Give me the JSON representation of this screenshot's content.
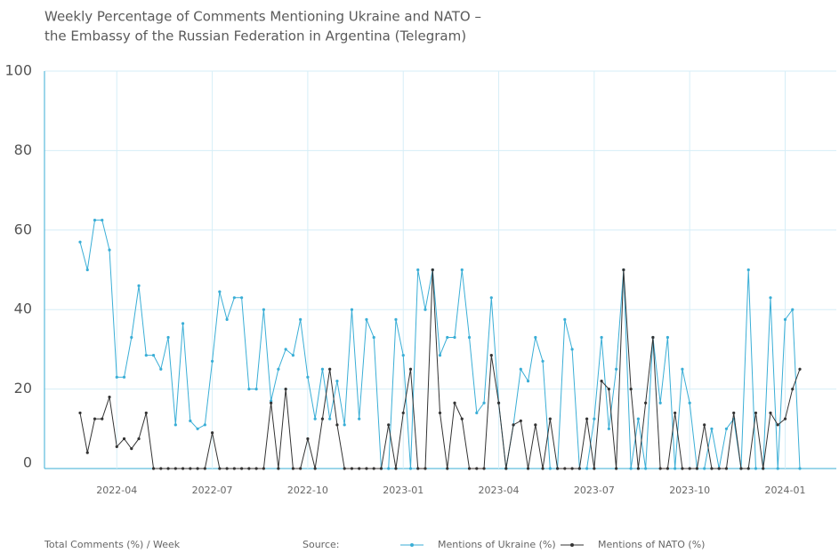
{
  "chart_data": {
    "type": "line",
    "title": "Weekly Percentage of Comments Mentioning Ukraine and NATO –",
    "subtitle": "the Embassy of the Russian Federation in Argentina (Telegram)",
    "y_label": "Total Comments (%) / Week",
    "source": "Source:",
    "categories": [
      null,
      null,
      null,
      null,
      null,
      "2022-04",
      null,
      null,
      null,
      null,
      null,
      null,
      null,
      null,
      null,
      null,
      null,
      null,
      "2022-07",
      null,
      null,
      null,
      null,
      null,
      null,
      null,
      null,
      null,
      null,
      null,
      null,
      "2022-10",
      null,
      null,
      null,
      null,
      null,
      null,
      null,
      null,
      null,
      null,
      null,
      null,
      "2023-01",
      null,
      null,
      null,
      null,
      null,
      null,
      null,
      null,
      null,
      null,
      null,
      null,
      "2023-04",
      null,
      null,
      null,
      null,
      null,
      null,
      null,
      null,
      null,
      null,
      null,
      null,
      "2023-07",
      null,
      null,
      null,
      null,
      null,
      null,
      null,
      null,
      null,
      null,
      null,
      null,
      "2023-10",
      null,
      null,
      null,
      null,
      null,
      null,
      null,
      null,
      null,
      null,
      null,
      null,
      "2024-01",
      null,
      null
    ],
    "series": [
      {
        "name": "Mentions of Ukraine (%)",
        "color": "#3aaed6",
        "values": [
          57,
          50,
          62.5,
          62.5,
          55,
          23,
          23,
          33,
          46,
          28.5,
          28.5,
          25,
          33,
          11,
          36.5,
          12,
          10,
          11,
          27,
          44.5,
          37.5,
          43,
          43,
          20,
          20,
          40,
          17,
          25,
          30,
          28.5,
          37.5,
          23,
          12.5,
          25,
          12.5,
          22,
          11,
          40,
          12.5,
          37.5,
          33,
          0,
          0,
          37.5,
          28.5,
          0,
          50,
          40,
          50,
          28.5,
          33,
          33,
          50,
          33,
          14,
          16.5,
          43,
          16.5,
          0,
          11,
          25,
          22,
          33,
          27,
          0,
          0,
          37.5,
          30,
          0,
          0,
          12.5,
          33,
          10,
          25,
          50,
          0,
          12.5,
          0,
          33,
          16.5,
          33,
          0,
          25,
          16.5,
          0,
          0,
          10,
          0,
          10,
          12.5,
          0,
          50,
          0,
          0,
          43,
          0,
          37.5,
          40,
          0
        ]
      },
      {
        "name": "Mentions of NATO (%)",
        "color": "#333333",
        "values": [
          14,
          4,
          12.5,
          12.5,
          18,
          5.5,
          7.5,
          5,
          7.5,
          14,
          0,
          0,
          0,
          0,
          0,
          0,
          0,
          0,
          9,
          0,
          0,
          0,
          0,
          0,
          0,
          0,
          16.5,
          0,
          20,
          0,
          0,
          7.5,
          0,
          12.5,
          25,
          11,
          0,
          0,
          0,
          0,
          0,
          0,
          11,
          0,
          14,
          25,
          0,
          0,
          50,
          14,
          0,
          16.5,
          12.5,
          0,
          0,
          0,
          28.5,
          16.5,
          0,
          11,
          12,
          0,
          11,
          0,
          12.5,
          0,
          0,
          0,
          0,
          12.5,
          0,
          22,
          20,
          0,
          50,
          20,
          0,
          16.5,
          33,
          0,
          0,
          14,
          0,
          0,
          0,
          11,
          0,
          0,
          0,
          14,
          0,
          0,
          14,
          0,
          14,
          11,
          12.5,
          20,
          25
        ]
      }
    ],
    "ylim": [
      0,
      100
    ],
    "yticks": [
      0,
      20,
      40,
      60,
      80,
      100
    ],
    "grid": true
  }
}
